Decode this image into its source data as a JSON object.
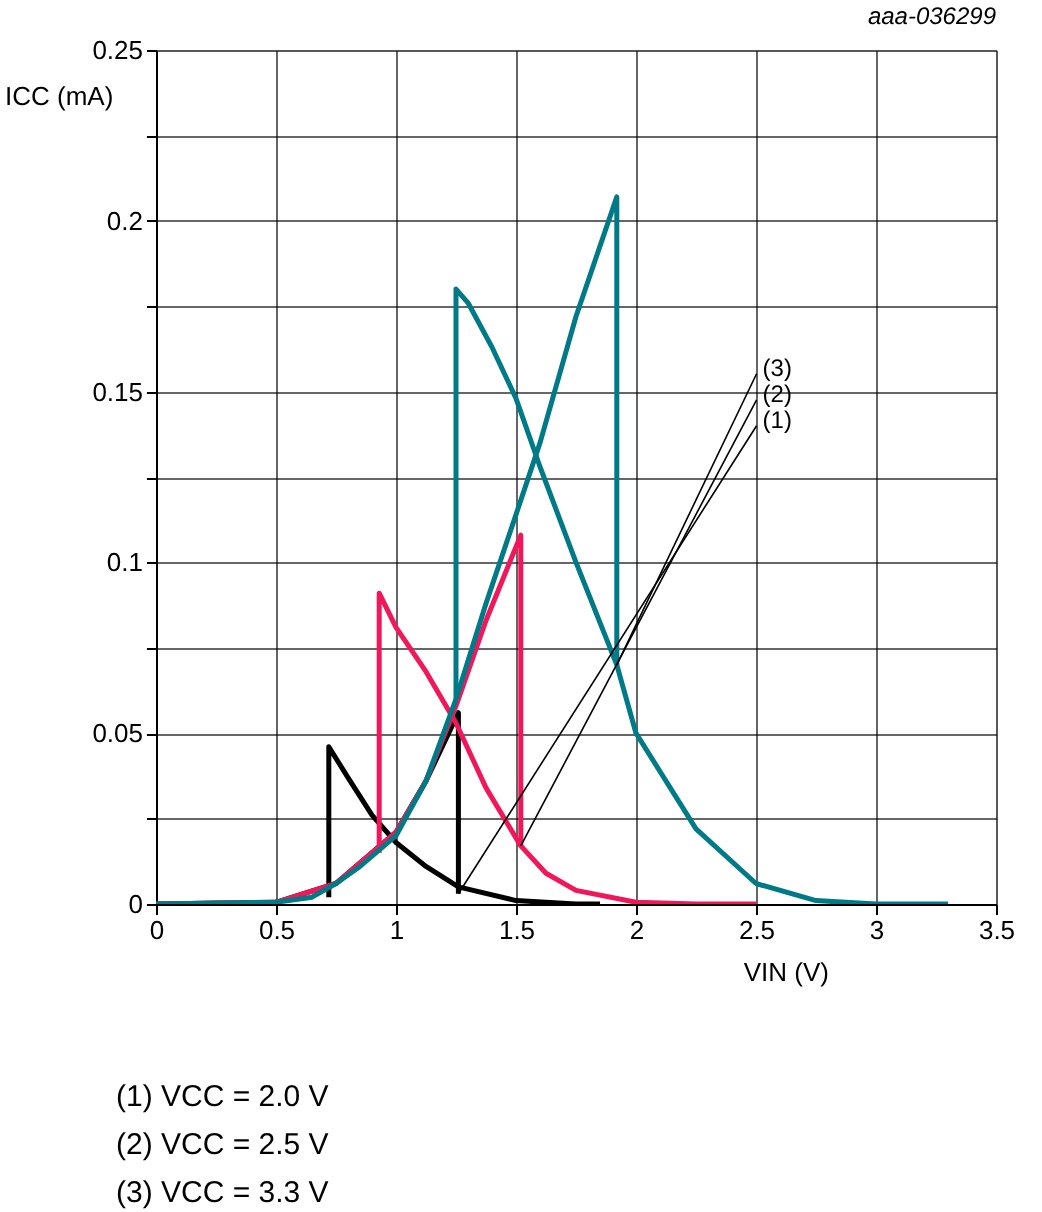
{
  "chart_data": {
    "type": "line",
    "xlabel": "VIN (V)",
    "ylabel": "ICC (mA)",
    "xlim": [
      0,
      3.5
    ],
    "ylim": [
      0,
      0.25
    ],
    "xticks": [
      0,
      0.5,
      1,
      1.5,
      2,
      2.5,
      3,
      3.5
    ],
    "yticks": [
      0,
      {
        "value": 0.025,
        "label": null
      },
      0.05,
      {
        "value": 0.075,
        "label": null
      },
      0.1,
      {
        "value": 0.125,
        "label": null
      },
      0.15,
      {
        "value": 0.175,
        "label": null
      },
      0.2,
      {
        "value": 0.225,
        "label": null
      },
      0.25
    ],
    "grid": true,
    "marker": "none",
    "line_style": "solid",
    "series": [
      {
        "color": "#000000",
        "x": [
          0,
          0.5,
          0.75,
          1.0,
          1.125,
          1.26,
          1.26
        ],
        "values": [
          0,
          0.0005,
          0.006,
          0.021,
          0.036,
          0.056,
          0.003
        ]
      },
      {
        "color": "#000000",
        "x": [
          0.72,
          0.72,
          0.8,
          0.9,
          1.0,
          1.125,
          1.26,
          1.5,
          1.75,
          1.85
        ],
        "values": [
          0.002,
          0.046,
          0.037,
          0.026,
          0.018,
          0.011,
          0.005,
          0.001,
          0,
          0
        ]
      },
      {
        "color": "#f0185a",
        "x": [
          0,
          0.5,
          0.75,
          1.0,
          1.125,
          1.25,
          1.375,
          1.52,
          1.52
        ],
        "values": [
          0,
          0.0005,
          0.006,
          0.021,
          0.036,
          0.058,
          0.083,
          0.108,
          0.017
        ]
      },
      {
        "color": "#f0185a",
        "x": [
          0.93,
          0.93,
          1.0,
          1.125,
          1.25,
          1.375,
          1.52,
          1.625,
          1.75,
          2.0,
          2.25,
          2.5
        ],
        "values": [
          0.015,
          0.091,
          0.081,
          0.068,
          0.053,
          0.034,
          0.017,
          0.009,
          0.004,
          0.0005,
          0,
          0
        ]
      },
      {
        "color": "#007a87",
        "x": [
          0,
          0.5,
          0.65,
          0.75,
          0.85,
          1.0,
          1.125,
          1.25,
          1.375,
          1.5,
          1.6,
          1.75,
          1.92,
          1.92
        ],
        "values": [
          0,
          0.0005,
          0.002,
          0.006,
          0.011,
          0.02,
          0.036,
          0.06,
          0.088,
          0.114,
          0.135,
          0.172,
          0.207,
          0.07
        ]
      },
      {
        "color": "#007a87",
        "x": [
          1.25,
          1.25,
          1.3,
          1.4,
          1.5,
          1.6,
          1.75,
          1.92,
          2.0,
          2.25,
          2.5,
          2.75,
          3.0,
          3.3
        ],
        "values": [
          0.06,
          0.18,
          0.176,
          0.163,
          0.148,
          0.128,
          0.1,
          0.07,
          0.05,
          0.022,
          0.006,
          0.001,
          0,
          0
        ]
      }
    ],
    "annotations": [
      {
        "text": "(1)",
        "x": 1.26,
        "y": 0.003
      },
      {
        "text": "(2)",
        "x": 1.52,
        "y": 0.017
      },
      {
        "text": "(3)",
        "x": 1.92,
        "y": 0.07
      },
      "aaa-036299",
      "(1) VCC = 2.0 V",
      "(2) VCC = 2.5 V",
      "(3) VCC = 3.3 V"
    ]
  }
}
